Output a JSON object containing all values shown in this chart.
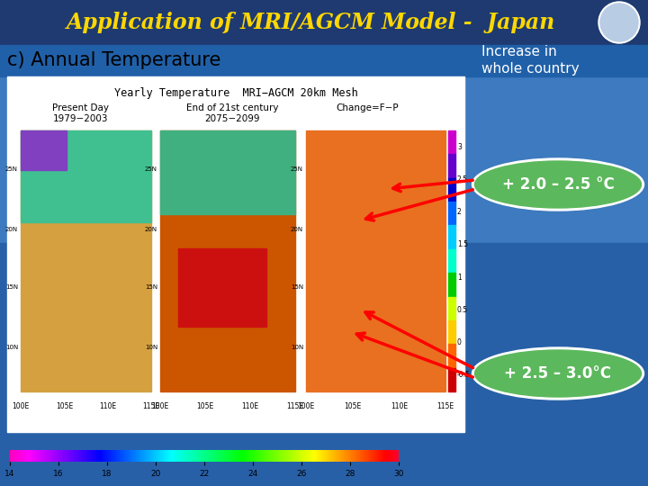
{
  "title": "Application of MRI/AGCM Model -  Japan",
  "title_color": "#FFD700",
  "title_bg_color": "#1e3a70",
  "subtitle": "c) Annual Temperature",
  "subtitle_color": "#000000",
  "increase_label": "Increase in\nwhole country",
  "increase_color": "#FFFFFF",
  "bubble1_text": "+ 2.0 – 2.5 °C",
  "bubble2_text": "+ 2.5 – 3.0°C",
  "bubble_fill": "#5cb85c",
  "bubble_border": "#FFFFFF",
  "bubble_text_color": "#FFFFFF",
  "slide_bg_top": "#4a8fc4",
  "slide_bg_bottom": "#2060a0",
  "content_bg": "#FFFFFF",
  "arrow_color": "#FF0000",
  "map_title": "Yearly Temperature  MRI−AGCM 20km Mesh",
  "map_label1a": "Present Day",
  "map_label1b": "1979−2003",
  "map_label2a": "End of 21st century",
  "map_label2b": "2075−2099",
  "map_label3": "Change=F−P",
  "cbar_ticks": [
    14,
    16,
    18,
    20,
    22,
    24,
    26,
    28,
    30
  ],
  "figsize": [
    7.2,
    5.4
  ],
  "dpi": 100
}
